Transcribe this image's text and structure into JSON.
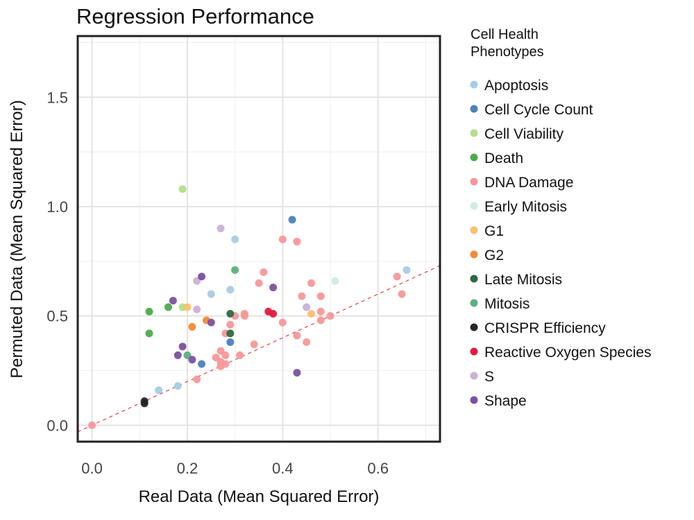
{
  "chart_data": {
    "type": "scatter",
    "title": "Regression Performance",
    "xlabel": "Real Data (Mean Squared Error)",
    "ylabel": "Permuted Data (Mean Squared Error)",
    "xlim": [
      -0.03,
      0.73
    ],
    "ylim": [
      -0.075,
      1.78
    ],
    "xticks": [
      0.0,
      0.2,
      0.4,
      0.6
    ],
    "xtick_labels": [
      "0.0",
      "0.2",
      "0.4",
      "0.6"
    ],
    "yticks": [
      0.0,
      0.5,
      1.0,
      1.5
    ],
    "ytick_labels": [
      "0.0",
      "0.5",
      "1.0",
      "1.5"
    ],
    "grid": true,
    "reference_line": {
      "style": "dashed",
      "color": "#e8484f",
      "slope": 1,
      "intercept": 0
    },
    "legend": {
      "title": "Cell Health Phenotypes",
      "placement": "right-outside"
    },
    "series": [
      {
        "name": "Apoptosis",
        "color": "#a6cde2",
        "points": [
          [
            0.14,
            0.16
          ],
          [
            0.18,
            0.18
          ],
          [
            0.25,
            0.6
          ],
          [
            0.29,
            0.62
          ],
          [
            0.3,
            0.85
          ],
          [
            0.66,
            0.71
          ]
        ]
      },
      {
        "name": "Cell Cycle Count",
        "color": "#4a82b9",
        "points": [
          [
            0.23,
            0.28
          ],
          [
            0.29,
            0.38
          ],
          [
            0.42,
            0.94
          ]
        ]
      },
      {
        "name": "Cell Viability",
        "color": "#b2df8a",
        "points": [
          [
            0.19,
            1.08
          ],
          [
            0.19,
            0.54
          ]
        ]
      },
      {
        "name": "Death",
        "color": "#4eab4b",
        "points": [
          [
            0.12,
            0.52
          ],
          [
            0.12,
            0.42
          ],
          [
            0.16,
            0.54
          ]
        ]
      },
      {
        "name": "DNA Damage",
        "color": "#f79899",
        "points": [
          [
            0.0,
            0.0
          ],
          [
            0.22,
            0.21
          ],
          [
            0.26,
            0.31
          ],
          [
            0.27,
            0.27
          ],
          [
            0.27,
            0.29
          ],
          [
            0.27,
            0.34
          ],
          [
            0.28,
            0.28
          ],
          [
            0.28,
            0.32
          ],
          [
            0.28,
            0.42
          ],
          [
            0.29,
            0.46
          ],
          [
            0.3,
            0.5
          ],
          [
            0.31,
            0.32
          ],
          [
            0.32,
            0.5
          ],
          [
            0.32,
            0.51
          ],
          [
            0.34,
            0.37
          ],
          [
            0.35,
            0.65
          ],
          [
            0.36,
            0.7
          ],
          [
            0.4,
            0.47
          ],
          [
            0.4,
            0.85
          ],
          [
            0.43,
            0.41
          ],
          [
            0.43,
            0.84
          ],
          [
            0.44,
            0.59
          ],
          [
            0.45,
            0.38
          ],
          [
            0.46,
            0.65
          ],
          [
            0.48,
            0.48
          ],
          [
            0.48,
            0.52
          ],
          [
            0.48,
            0.59
          ],
          [
            0.5,
            0.5
          ],
          [
            0.64,
            0.68
          ],
          [
            0.65,
            0.6
          ]
        ]
      },
      {
        "name": "Early Mitosis",
        "color": "#d0ebe4",
        "points": [
          [
            0.51,
            0.66
          ]
        ]
      },
      {
        "name": "G1",
        "color": "#fcbf6e",
        "points": [
          [
            0.2,
            0.54
          ],
          [
            0.46,
            0.51
          ]
        ]
      },
      {
        "name": "G2",
        "color": "#f58a33",
        "points": [
          [
            0.21,
            0.45
          ],
          [
            0.24,
            0.48
          ]
        ]
      },
      {
        "name": "Late Mitosis",
        "color": "#2f6842",
        "points": [
          [
            0.29,
            0.42
          ],
          [
            0.29,
            0.51
          ]
        ]
      },
      {
        "name": "Mitosis",
        "color": "#5cb07f",
        "points": [
          [
            0.2,
            0.32
          ],
          [
            0.3,
            0.71
          ]
        ]
      },
      {
        "name": "CRISPR Efficiency",
        "color": "#262626",
        "points": [
          [
            0.11,
            0.1
          ],
          [
            0.11,
            0.11
          ]
        ]
      },
      {
        "name": "Reactive Oxygen Species",
        "color": "#e31a3a",
        "points": [
          [
            0.37,
            0.52
          ],
          [
            0.38,
            0.51
          ]
        ]
      },
      {
        "name": "S",
        "color": "#cab2d6",
        "points": [
          [
            0.22,
            0.53
          ],
          [
            0.22,
            0.66
          ],
          [
            0.27,
            0.9
          ],
          [
            0.45,
            0.54
          ]
        ]
      },
      {
        "name": "Shape",
        "color": "#7b519e",
        "points": [
          [
            0.17,
            0.57
          ],
          [
            0.18,
            0.32
          ],
          [
            0.19,
            0.36
          ],
          [
            0.21,
            0.3
          ],
          [
            0.23,
            0.68
          ],
          [
            0.25,
            0.47
          ],
          [
            0.38,
            0.63
          ],
          [
            0.43,
            0.24
          ]
        ]
      }
    ]
  }
}
